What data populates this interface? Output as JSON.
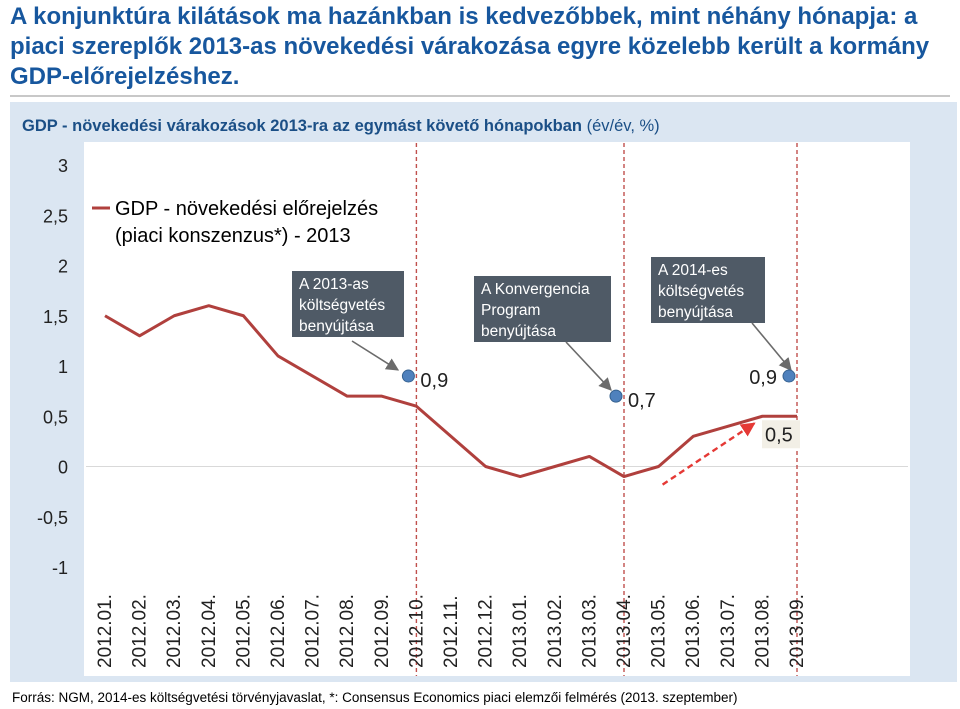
{
  "slide": {
    "title": "A konjunktúra kilátások ma hazánkban is kedvezőbbek, mint néhány hónapja: a piaci szereplők 2013-as növekedési várakozása egyre közelebb került a kormány GDP-előrejelzéshez.",
    "source": "Forrás: NGM, 2014-es költségvetési törvényjavaslat, *: Consensus Economics piaci elemzői felmérés (2013. szeptember)"
  },
  "chart_data": {
    "type": "line",
    "title": "GDP  - növekedési várakozások 2013-ra az egymást követő hónapokban",
    "unit": "(év/év, %)",
    "categories": [
      "2012.01.",
      "2012.02.",
      "2012.03.",
      "2012.04.",
      "2012.05.",
      "2012.06.",
      "2012.07.",
      "2012.08.",
      "2012.09.",
      "2012.10.",
      "2012.11.",
      "2012.12.",
      "2013.01.",
      "2013.02.",
      "2013.03.",
      "2013.04.",
      "2013.05.",
      "2013.06.",
      "2013.07.",
      "2013.08.",
      "2013.09."
    ],
    "series": [
      {
        "name_lines": [
          "GDP - növekedési előrejelzés",
          "(piaci konszenzus*) - 2013"
        ],
        "color": "#b0403d",
        "values": [
          1.5,
          1.3,
          1.5,
          1.6,
          1.5,
          1.1,
          0.9,
          0.7,
          0.7,
          0.6,
          0.3,
          0.0,
          -0.1,
          0.0,
          0.1,
          -0.1,
          0.0,
          0.3,
          0.4,
          0.5,
          0.5
        ]
      }
    ],
    "government_forecasts": [
      {
        "category": "2012.10.",
        "value": 0.9,
        "label": "0,9"
      },
      {
        "category": "2013.04.",
        "value": 0.7,
        "label": "0,7"
      },
      {
        "category": "2013.09.",
        "value": 0.9,
        "label": "0,9"
      }
    ],
    "market_end_label": "0,5",
    "y_ticks": [
      3,
      2.5,
      2,
      1.5,
      1,
      0.5,
      0,
      -0.5,
      -1
    ],
    "y_tick_labels": [
      "3",
      "2,5",
      "2",
      "1,5",
      "1",
      "0,5",
      "0",
      "-0,5",
      "-1"
    ],
    "ylim": [
      -1,
      3
    ],
    "event_lines": [
      "2012.10.",
      "2013.04.",
      "2013.09."
    ],
    "annotations": [
      {
        "lines": [
          "A 2013-as",
          "költségvetés",
          "benyújtása"
        ],
        "target": "2012.10."
      },
      {
        "lines": [
          "A Konvergencia",
          "Program",
          "benyújtása"
        ],
        "target": "2013.04."
      },
      {
        "lines": [
          "A 2014-es",
          "költségvetés",
          "benyújtása"
        ],
        "target": "2013.09."
      }
    ],
    "trend_arrow": {
      "from": "2013.05.",
      "to": "2013.08.",
      "color": "#e53935"
    },
    "colors": {
      "marker": "#4f81bd",
      "annotation_box": "#4f5a66",
      "event_line": "#c0504d",
      "label_highlight": "#f2efe6",
      "panel": "#dbe6f2",
      "title": "#17579e"
    }
  }
}
